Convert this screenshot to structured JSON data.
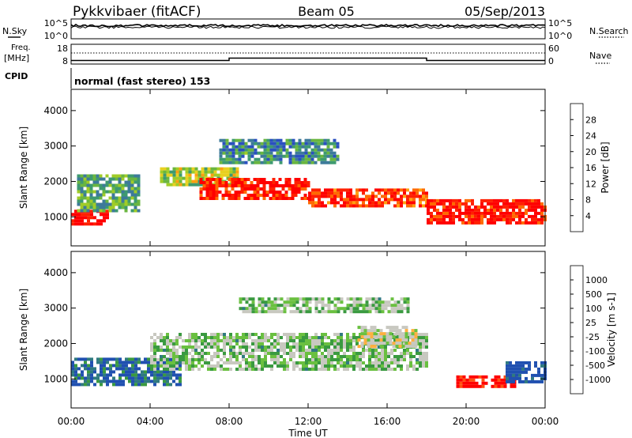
{
  "header": {
    "title": "Pykkvibaer (fitACF)",
    "beam": "Beam 05",
    "date": "05/Sep/2013"
  },
  "strip_nsky": {
    "left_label": "N.Sky",
    "left_ticks": [
      "10^5",
      "10^0"
    ],
    "right_label": "N.Search",
    "right_ticks": [
      "10^5",
      "10^0"
    ]
  },
  "strip_freq": {
    "left_label_1": "Freq.",
    "left_label_2": "[MHz]",
    "left_ticks": [
      "18",
      "8"
    ],
    "right_label": "Nave",
    "right_ticks": [
      "60",
      "0"
    ],
    "freq_steps": [
      {
        "t_start": 0,
        "t_end": 8,
        "value": 9.8
      },
      {
        "t_start": 8,
        "t_end": 18,
        "value": 11.0
      },
      {
        "t_start": 18,
        "t_end": 24,
        "value": 9.8
      }
    ]
  },
  "cpid": {
    "label": "CPID",
    "text": "normal (fast stereo) 153"
  },
  "x_axis": {
    "ticks": [
      "00:00",
      "04:00",
      "08:00",
      "12:00",
      "16:00",
      "20:00",
      "00:00"
    ],
    "label": "Time UT",
    "range": [
      0,
      24
    ]
  },
  "chart_data": [
    {
      "type": "heatmap",
      "name": "power",
      "ylabel": "Slant Range [km]",
      "ylim": [
        180,
        4600
      ],
      "yticks": [
        "1000",
        "2000",
        "3000",
        "4000"
      ],
      "colorbar": {
        "label": "Power [dB]",
        "ticks": [
          "28",
          "24",
          "20",
          "16",
          "12",
          "8",
          "4"
        ],
        "colors": [
          "#0000ff",
          "#2a50c0",
          "#3d7a9a",
          "#3e9a70",
          "#6ab640",
          "#a0cc28",
          "#e8d020",
          "#ffa010",
          "#ff6a00",
          "#ff2000",
          "#ff0000"
        ]
      },
      "features": [
        {
          "t_start": 0.0,
          "t_end": 1.8,
          "r_low": 800,
          "r_high": 1200,
          "level": 28
        },
        {
          "t_start": 0.3,
          "t_end": 3.5,
          "r_low": 1200,
          "r_high": 2200,
          "level": 10
        },
        {
          "t_start": 4.5,
          "t_end": 8.5,
          "r_low": 1900,
          "r_high": 2400,
          "level": 14
        },
        {
          "t_start": 6.5,
          "t_end": 12.0,
          "r_low": 1500,
          "r_high": 2100,
          "level": 26
        },
        {
          "t_start": 12.0,
          "t_end": 18.0,
          "r_low": 1300,
          "r_high": 1800,
          "level": 24
        },
        {
          "t_start": 18.0,
          "t_end": 24.0,
          "r_low": 800,
          "r_high": 1500,
          "level": 26
        },
        {
          "t_start": 7.5,
          "t_end": 13.5,
          "r_low": 2500,
          "r_high": 3200,
          "level": 8
        }
      ]
    },
    {
      "type": "heatmap",
      "name": "velocity",
      "ylabel": "Slant Range [km]",
      "ylim": [
        180,
        4600
      ],
      "yticks": [
        "1000",
        "2000",
        "3000",
        "4000"
      ],
      "colorbar": {
        "label": "Velocity [m s-1]",
        "ticks": [
          "1000",
          "500",
          "100",
          "25",
          "-25",
          "-100",
          "-500",
          "-1000"
        ],
        "colors": [
          "#2050b0",
          "#2f7a80",
          "#3a9a40",
          "#6ac040",
          "#c8c8c0",
          "#c8c8c0",
          "#ffb040",
          "#ff8020",
          "#ff5010",
          "#ff0000"
        ]
      },
      "features": [
        {
          "t_start": 0.0,
          "t_end": 5.5,
          "r_low": 800,
          "r_high": 1600,
          "level": -300
        },
        {
          "t_start": 4.0,
          "t_end": 18.0,
          "r_low": 1300,
          "r_high": 2300,
          "level": 0
        },
        {
          "t_start": 14.5,
          "t_end": 17.5,
          "r_low": 1900,
          "r_high": 2500,
          "level": 150
        },
        {
          "t_start": 19.5,
          "t_end": 22.5,
          "r_low": 800,
          "r_high": 1100,
          "level": 700
        },
        {
          "t_start": 22.0,
          "t_end": 24.0,
          "r_low": 900,
          "r_high": 1500,
          "level": -400
        },
        {
          "t_start": 8.5,
          "t_end": 17.0,
          "r_low": 2900,
          "r_high": 3300,
          "level": 0
        }
      ]
    }
  ]
}
